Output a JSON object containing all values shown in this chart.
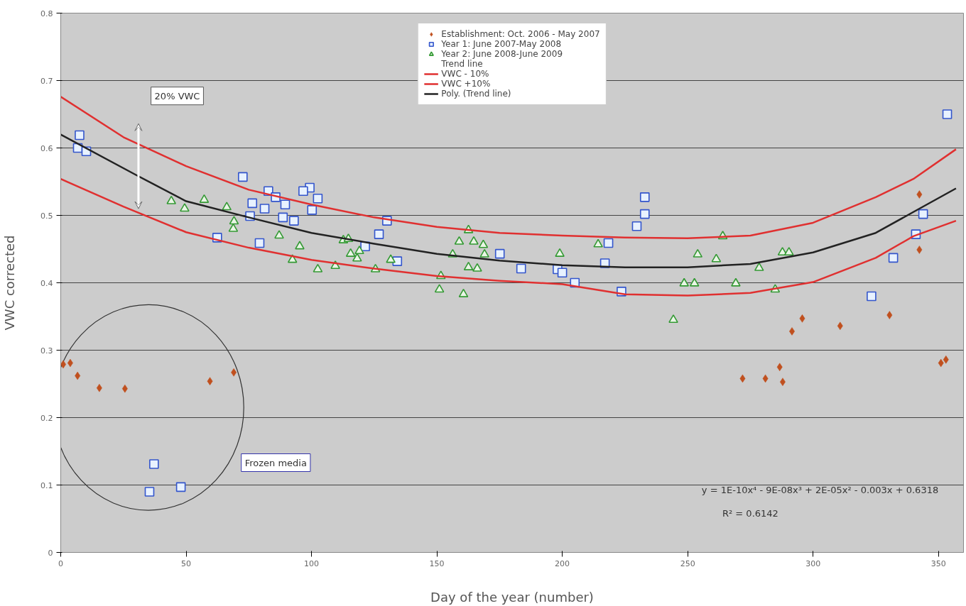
{
  "chart_data": {
    "type": "scatter",
    "xlabel": "Day of the year (number)",
    "ylabel": "VWC corrected",
    "xlim": [
      0,
      360
    ],
    "ylim": [
      0,
      0.8
    ],
    "xticks": [
      0,
      50,
      100,
      150,
      200,
      250,
      300,
      350
    ],
    "yticks": [
      0,
      0.1,
      0.2,
      0.3,
      0.4,
      0.5,
      0.6,
      0.7,
      0.8
    ],
    "grid": "y",
    "legend": "top",
    "annotations": [
      "20% VWC",
      "Frozen media",
      "y = 1E-10x⁴ - 9E-08x³ + 2E-05x² - 0.003x + 0.6318",
      "R² = 0.6142"
    ],
    "series": [
      {
        "name": "Establishment: Oct. 2006 - May 2007",
        "marker": "diamond",
        "color": "#c0501f",
        "x": [
          1,
          3.8,
          6.7,
          15.4,
          25.6,
          59.5,
          69,
          271.9,
          281,
          286.7,
          287.9,
          291.6,
          295.7,
          310.8,
          330.5,
          342.4,
          342.4,
          351,
          353
        ],
        "values": [
          0.279,
          0.281,
          0.262,
          0.244,
          0.243,
          0.254,
          0.267,
          0.258,
          0.258,
          0.275,
          0.253,
          0.328,
          0.347,
          0.336,
          0.352,
          0.531,
          0.449,
          0.281,
          0.286
        ]
      },
      {
        "name": "Year 1: June 2007-May 2008",
        "marker": "square",
        "color": "#3355cc",
        "x": [
          7.5,
          6.8,
          10.2,
          72.6,
          62.4,
          79.3,
          76.4,
          81.3,
          82.8,
          85.7,
          89.5,
          75.5,
          88.6,
          93,
          99.3,
          96.7,
          102.5,
          100.2,
          130.1,
          126.9,
          121.4,
          134.2,
          175.1,
          183.6,
          198.1,
          200,
          205,
          223.6,
          217,
          218.4,
          229.7,
          232.9,
          232.9,
          323.3,
          332,
          341,
          343.9,
          353.5,
          37.2,
          35.4,
          47.9
        ],
        "values": [
          0.619,
          0.6,
          0.595,
          0.557,
          0.467,
          0.459,
          0.518,
          0.51,
          0.536,
          0.527,
          0.516,
          0.499,
          0.497,
          0.492,
          0.541,
          0.536,
          0.525,
          0.508,
          0.492,
          0.472,
          0.454,
          0.432,
          0.443,
          0.421,
          0.42,
          0.415,
          0.4,
          0.387,
          0.429,
          0.459,
          0.484,
          0.502,
          0.527,
          0.38,
          0.437,
          0.472,
          0.502,
          0.65,
          0.131,
          0.09,
          0.097
        ]
      },
      {
        "name": "Year 2: June 2008-June 2009",
        "marker": "triangle",
        "color": "#339933",
        "x": [
          44.1,
          49.4,
          57.2,
          66.2,
          69.1,
          68.8,
          87.1,
          95.3,
          92.4,
          102.5,
          109.5,
          112.7,
          114.7,
          115.6,
          118.2,
          119.1,
          125.5,
          131.6,
          151.6,
          151,
          156.3,
          158.9,
          162.6,
          164.7,
          168.5,
          169,
          162.6,
          166.1,
          160.6,
          199,
          214.3,
          264,
          254,
          261.4,
          248.6,
          252.7,
          269.2,
          278.5,
          284.9,
          287.8,
          290.4,
          244.3
        ],
        "values": [
          0.521,
          0.51,
          0.523,
          0.512,
          0.491,
          0.48,
          0.47,
          0.454,
          0.434,
          0.42,
          0.425,
          0.463,
          0.465,
          0.443,
          0.436,
          0.447,
          0.42,
          0.434,
          0.41,
          0.39,
          0.442,
          0.461,
          0.478,
          0.461,
          0.456,
          0.442,
          0.423,
          0.421,
          0.383,
          0.443,
          0.457,
          0.469,
          0.442,
          0.435,
          0.399,
          0.399,
          0.399,
          0.422,
          0.39,
          0.445,
          0.445,
          0.345
        ]
      },
      {
        "name": "Trend line",
        "marker": "none"
      },
      {
        "name": "VWC - 10%",
        "type": "line",
        "marker": "none",
        "line_style": "solid",
        "color": "#e03030",
        "x": [
          0,
          25,
          50,
          75,
          100,
          125,
          150,
          175,
          200,
          225,
          250,
          275,
          300,
          325,
          340,
          357
        ],
        "values": [
          0.554,
          0.513,
          0.475,
          0.452,
          0.434,
          0.421,
          0.41,
          0.403,
          0.398,
          0.383,
          0.381,
          0.385,
          0.401,
          0.437,
          0.469,
          0.492
        ]
      },
      {
        "name": "VWC +10%",
        "type": "line",
        "marker": "none",
        "line_style": "solid",
        "color": "#e03030",
        "x": [
          0,
          25,
          50,
          75,
          100,
          125,
          150,
          175,
          200,
          225,
          250,
          275,
          300,
          325,
          340,
          357
        ],
        "values": [
          0.676,
          0.616,
          0.573,
          0.538,
          0.516,
          0.497,
          0.483,
          0.474,
          0.47,
          0.467,
          0.466,
          0.47,
          0.489,
          0.527,
          0.554,
          0.598
        ]
      },
      {
        "name": "Poly. (Trend line)",
        "type": "line",
        "marker": "none",
        "line_style": "solid",
        "color": "#222222",
        "x": [
          0,
          30,
          50,
          75,
          100,
          125,
          150,
          175,
          200,
          225,
          250,
          275,
          300,
          325,
          340,
          357
        ],
        "values": [
          0.62,
          0.56,
          0.521,
          0.497,
          0.474,
          0.458,
          0.443,
          0.433,
          0.426,
          0.423,
          0.423,
          0.428,
          0.445,
          0.474,
          0.505,
          0.54
        ]
      }
    ]
  }
}
